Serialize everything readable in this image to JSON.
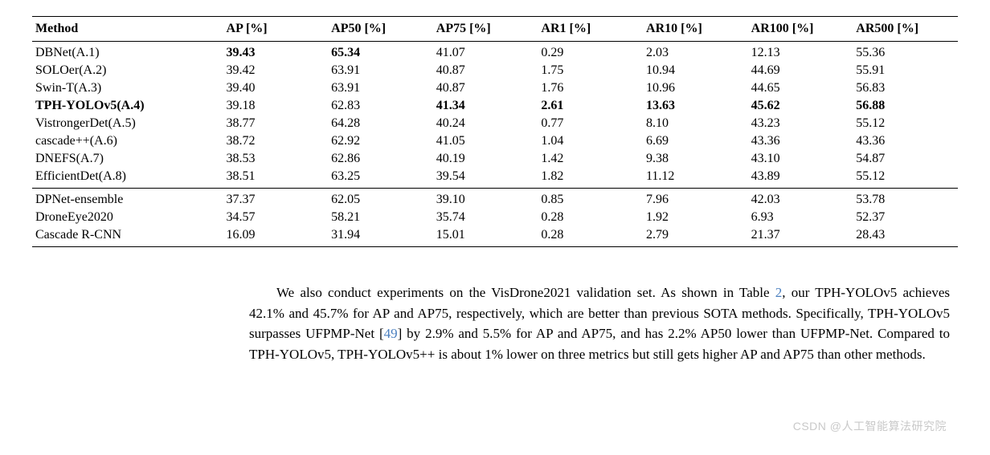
{
  "table": {
    "columns": [
      "Method",
      "AP [%]",
      "AP50 [%]",
      "AP75 [%]",
      "AR1 [%]",
      "AR10 [%]",
      "AR100 [%]",
      "AR500 [%]"
    ],
    "bold_cells": {
      "0": [
        1,
        2
      ],
      "3": [
        0,
        3,
        4,
        5,
        6,
        7
      ]
    },
    "group1": [
      {
        "method": "DBNet(A.1)",
        "ap": "39.43",
        "ap50": "65.34",
        "ap75": "41.07",
        "ar1": "0.29",
        "ar10": "2.03",
        "ar100": "12.13",
        "ar500": "55.36"
      },
      {
        "method": "SOLOer(A.2)",
        "ap": "39.42",
        "ap50": "63.91",
        "ap75": "40.87",
        "ar1": "1.75",
        "ar10": "10.94",
        "ar100": "44.69",
        "ar500": "55.91"
      },
      {
        "method": "Swin-T(A.3)",
        "ap": "39.40",
        "ap50": "63.91",
        "ap75": "40.87",
        "ar1": "1.76",
        "ar10": "10.96",
        "ar100": "44.65",
        "ar500": "56.83"
      },
      {
        "method": "TPH-YOLOv5(A.4)",
        "ap": "39.18",
        "ap50": "62.83",
        "ap75": "41.34",
        "ar1": "2.61",
        "ar10": "13.63",
        "ar100": "45.62",
        "ar500": "56.88"
      },
      {
        "method": "VistrongerDet(A.5)",
        "ap": "38.77",
        "ap50": "64.28",
        "ap75": "40.24",
        "ar1": "0.77",
        "ar10": "8.10",
        "ar100": "43.23",
        "ar500": "55.12"
      },
      {
        "method": "cascade++(A.6)",
        "ap": "38.72",
        "ap50": "62.92",
        "ap75": "41.05",
        "ar1": "1.04",
        "ar10": "6.69",
        "ar100": "43.36",
        "ar500": "43.36"
      },
      {
        "method": "DNEFS(A.7)",
        "ap": "38.53",
        "ap50": "62.86",
        "ap75": "40.19",
        "ar1": "1.42",
        "ar10": "9.38",
        "ar100": "43.10",
        "ar500": "54.87"
      },
      {
        "method": "EfficientDet(A.8)",
        "ap": "38.51",
        "ap50": "63.25",
        "ap75": "39.54",
        "ar1": "1.82",
        "ar10": "11.12",
        "ar100": "43.89",
        "ar500": "55.12"
      }
    ],
    "group2": [
      {
        "method": "DPNet-ensemble",
        "ap": "37.37",
        "ap50": "62.05",
        "ap75": "39.10",
        "ar1": "0.85",
        "ar10": "7.96",
        "ar100": "42.03",
        "ar500": "53.78"
      },
      {
        "method": "DroneEye2020",
        "ap": "34.57",
        "ap50": "58.21",
        "ap75": "35.74",
        "ar1": "0.28",
        "ar10": "1.92",
        "ar100": "6.93",
        "ar500": "52.37"
      },
      {
        "method": "Cascade R-CNN",
        "ap": "16.09",
        "ap50": "31.94",
        "ap75": "15.01",
        "ar1": "0.28",
        "ar10": "2.79",
        "ar100": "21.37",
        "ar500": "28.43"
      }
    ]
  },
  "paragraph": {
    "text_before_tbl": "We also conduct experiments on the VisDrone2021 validation set. As shown in Table ",
    "tbl_ref": "2",
    "text_mid": ", our TPH-YOLOv5 achieves 42.1% and 45.7% for AP and AP75, respectively, which are better than previous SOTA methods. Specifically, TPH-YOLOv5 surpasses UFPMP-Net [",
    "cite_ref": "49",
    "text_after": "] by 2.9% and 5.5% for AP and AP75, and has 2.2% AP50 lower than UFPMP-Net. Compared to TPH-YOLOv5, TPH-YOLOv5++ is about 1% lower on three metrics but still gets higher AP and AP75 than other methods."
  },
  "watermark": "CSDN @人工智能算法研究院"
}
